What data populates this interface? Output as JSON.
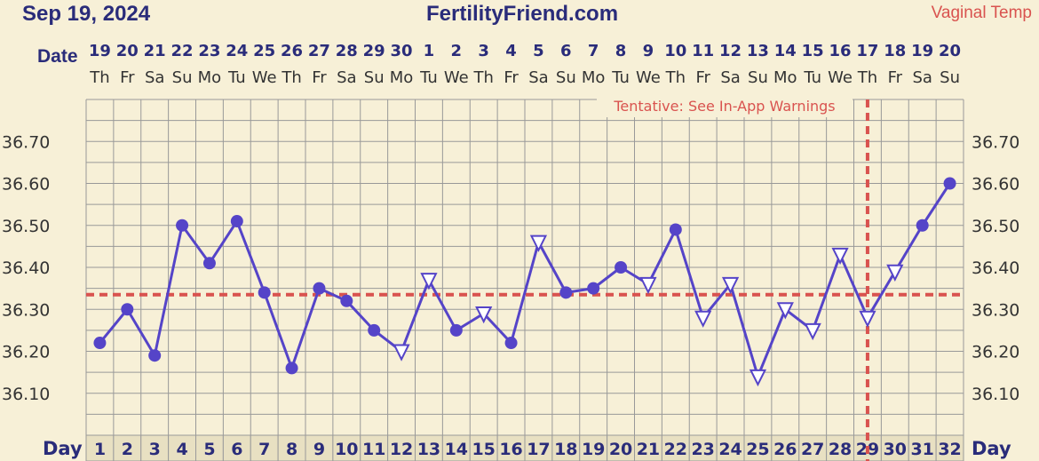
{
  "header": {
    "chart_date": "Sep 19, 2024",
    "site": "FertilityFriend.com",
    "temp_method": "Vaginal Temp"
  },
  "labels": {
    "date_row": "Date",
    "day_row": "Day"
  },
  "chart_data": {
    "type": "line",
    "title": "",
    "ylim": [
      36.0,
      36.8
    ],
    "y_ticks": [
      "36.70",
      "36.60",
      "36.50",
      "36.40",
      "36.30",
      "36.20",
      "36.10"
    ],
    "coverline": 36.335,
    "cycle_day_marker": 29,
    "warning_text": "Tentative: See In-App Warnings",
    "grid": true,
    "colors": {
      "line": "#5544c8",
      "coverline": "#d9534f",
      "grid": "#999999",
      "background": "#f7f0d7",
      "header_text": "#2a2c7a"
    },
    "dates": [
      "19",
      "20",
      "21",
      "22",
      "23",
      "24",
      "25",
      "26",
      "27",
      "28",
      "29",
      "30",
      "1",
      "2",
      "3",
      "4",
      "5",
      "6",
      "7",
      "8",
      "9",
      "10",
      "11",
      "12",
      "13",
      "14",
      "15",
      "16",
      "17",
      "18",
      "19",
      "20"
    ],
    "weekdays": [
      "Th",
      "Fr",
      "Sa",
      "Su",
      "Mo",
      "Tu",
      "We",
      "Th",
      "Fr",
      "Sa",
      "Su",
      "Mo",
      "Tu",
      "We",
      "Th",
      "Fr",
      "Sa",
      "Su",
      "Mo",
      "Tu",
      "We",
      "Th",
      "Fr",
      "Sa",
      "Su",
      "Mo",
      "Tu",
      "We",
      "Th",
      "Fr",
      "Sa",
      "Su"
    ],
    "days": [
      "1",
      "2",
      "3",
      "4",
      "5",
      "6",
      "7",
      "8",
      "9",
      "10",
      "11",
      "12",
      "13",
      "14",
      "15",
      "16",
      "17",
      "18",
      "19",
      "20",
      "21",
      "22",
      "23",
      "24",
      "25",
      "26",
      "27",
      "28",
      "29",
      "30",
      "31",
      "32"
    ],
    "temps": [
      36.22,
      36.3,
      36.19,
      36.5,
      36.41,
      36.51,
      36.34,
      36.16,
      36.35,
      36.32,
      36.25,
      36.2,
      36.37,
      36.25,
      36.29,
      36.22,
      36.46,
      36.34,
      36.35,
      36.4,
      36.36,
      36.49,
      36.28,
      36.36,
      36.14,
      36.3,
      36.25,
      36.43,
      36.28,
      36.39,
      36.5,
      36.6
    ],
    "markers": [
      "dot",
      "dot",
      "dot",
      "dot",
      "dot",
      "dot",
      "dot",
      "dot",
      "dot",
      "dot",
      "dot",
      "tri",
      "tri",
      "dot",
      "tri",
      "dot",
      "tri",
      "dot",
      "dot",
      "dot",
      "tri",
      "dot",
      "tri",
      "tri",
      "tri",
      "tri",
      "tri",
      "tri",
      "tri",
      "tri",
      "dot",
      "dot"
    ]
  }
}
